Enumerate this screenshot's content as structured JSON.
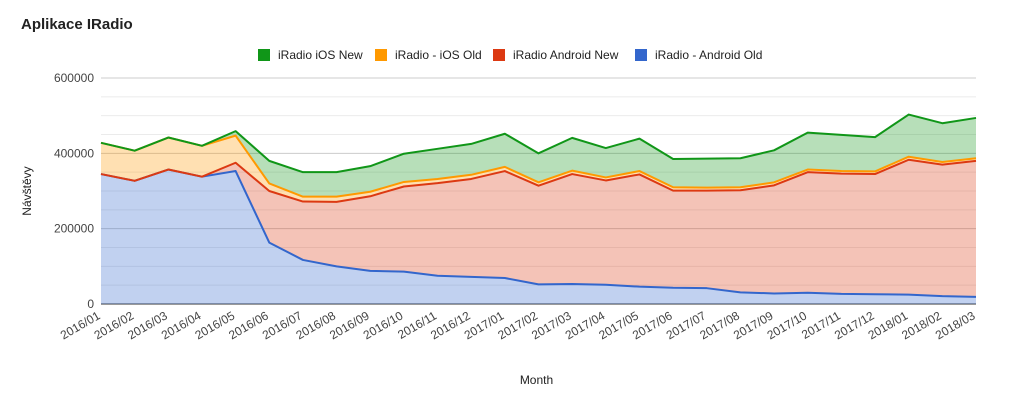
{
  "chart_data": {
    "type": "area",
    "stacked": true,
    "title": "Aplikace IRadio",
    "xlabel": "Month",
    "ylabel": "Návštěvy",
    "ylim": [
      0,
      600000
    ],
    "yticks": [
      0,
      200000,
      400000,
      600000
    ],
    "ytick_labels": [
      "0",
      "200000",
      "400000",
      "600000"
    ],
    "grid": true,
    "legend_position": "top",
    "categories": [
      "2016/01",
      "2016/02",
      "2016/03",
      "2016/04",
      "2016/05",
      "2016/06",
      "2016/07",
      "2016/08",
      "2016/09",
      "2016/10",
      "2016/11",
      "2016/12",
      "2017/01",
      "2017/02",
      "2017/03",
      "2017/04",
      "2017/05",
      "2017/06",
      "2017/07",
      "2017/08",
      "2017/09",
      "2017/10",
      "2017/11",
      "2017/12",
      "2018/01",
      "2018/02",
      "2018/03"
    ],
    "series": [
      {
        "name": "iRadio - Android Old",
        "color": "#3366cc",
        "values": [
          345000,
          327000,
          357000,
          338000,
          353000,
          163000,
          117000,
          100000,
          88000,
          86000,
          75000,
          72000,
          69000,
          52000,
          53000,
          51000,
          46000,
          43000,
          42000,
          31000,
          28000,
          30000,
          27000,
          26000,
          25000,
          21000,
          19000
        ]
      },
      {
        "name": "iRadio Android New",
        "color": "#dc3912",
        "values": [
          0,
          0,
          0,
          0,
          22000,
          137000,
          155000,
          171000,
          198000,
          226000,
          246000,
          260000,
          284000,
          262000,
          292000,
          277000,
          298000,
          258000,
          259000,
          271000,
          287000,
          320000,
          319000,
          319000,
          358000,
          349000,
          361000
        ]
      },
      {
        "name": "iRadio - iOS Old",
        "color": "#ff9900",
        "values": [
          83000,
          80000,
          85000,
          82000,
          72000,
          20000,
          13000,
          14000,
          12000,
          12000,
          11000,
          11000,
          11000,
          9000,
          9000,
          8000,
          9000,
          9000,
          8000,
          8000,
          8000,
          7000,
          7000,
          7000,
          8000,
          7000,
          7000
        ]
      },
      {
        "name": "iRadio iOS New",
        "color": "#109618",
        "values": [
          0,
          0,
          0,
          0,
          12000,
          60000,
          65000,
          65000,
          68000,
          75000,
          80000,
          82000,
          88000,
          77000,
          87000,
          78000,
          86000,
          75000,
          77000,
          77000,
          85000,
          98000,
          96000,
          91000,
          112000,
          103000,
          107000
        ]
      }
    ],
    "legend_order": [
      "iRadio iOS New",
      "iRadio - iOS Old",
      "iRadio Android New",
      "iRadio - Android Old"
    ]
  }
}
